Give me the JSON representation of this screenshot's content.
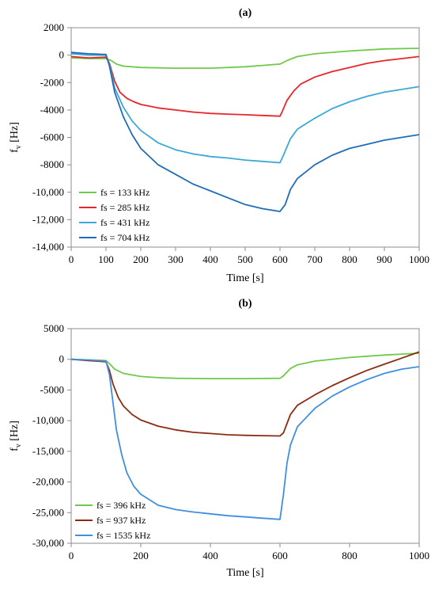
{
  "chart_data": [
    {
      "type": "line",
      "title": "(a)",
      "xlabel": "Time [s]",
      "ylabel": "f_v [Hz]",
      "ylabel_main": "f",
      "ylabel_sub": "v",
      "ylabel_unit": " [Hz]",
      "xlim": [
        0,
        1000
      ],
      "ylim": [
        -14000,
        2000
      ],
      "xticks": [
        0,
        100,
        200,
        300,
        400,
        500,
        600,
        700,
        800,
        900,
        1000
      ],
      "xtick_labels": [
        "0",
        "100",
        "200",
        "300",
        "400",
        "500",
        "600",
        "700",
        "800",
        "900",
        "1000"
      ],
      "yticks": [
        2000,
        0,
        -2000,
        -4000,
        -6000,
        -8000,
        -10000,
        -12000,
        -14000
      ],
      "ytick_labels": [
        "2000",
        "0",
        "-2000",
        "-4000",
        "-6000",
        "-8000",
        "-10,000",
        "-12,000",
        "-14,000"
      ],
      "grid": false,
      "legend_position": "bottom-left",
      "series": [
        {
          "name": "fs = 133 kHz",
          "color": "#70c94b",
          "x": [
            0,
            50,
            100,
            115,
            130,
            150,
            200,
            300,
            400,
            500,
            550,
            600,
            620,
            650,
            700,
            800,
            900,
            1000
          ],
          "y": [
            -200,
            -250,
            -250,
            -400,
            -650,
            -800,
            -900,
            -950,
            -950,
            -850,
            -750,
            -650,
            -400,
            -100,
            100,
            300,
            450,
            500
          ]
        },
        {
          "name": "fs = 285 kHz",
          "color": "#e8262a",
          "x": [
            0,
            50,
            100,
            110,
            125,
            140,
            160,
            180,
            200,
            250,
            300,
            350,
            400,
            450,
            500,
            550,
            600,
            605,
            620,
            640,
            660,
            700,
            750,
            800,
            850,
            900,
            950,
            1000
          ],
          "y": [
            -100,
            -200,
            -150,
            -600,
            -1900,
            -2700,
            -3150,
            -3400,
            -3600,
            -3850,
            -4000,
            -4150,
            -4250,
            -4300,
            -4350,
            -4400,
            -4450,
            -4200,
            -3300,
            -2600,
            -2100,
            -1600,
            -1200,
            -900,
            -600,
            -400,
            -250,
            -100
          ]
        },
        {
          "name": "fs = 431 kHz",
          "color": "#3aa8d8",
          "x": [
            0,
            50,
            100,
            110,
            125,
            150,
            175,
            200,
            250,
            300,
            350,
            400,
            450,
            500,
            550,
            600,
            610,
            630,
            650,
            700,
            750,
            800,
            850,
            900,
            950,
            1000
          ],
          "y": [
            100,
            0,
            0,
            -700,
            -2400,
            -3800,
            -4800,
            -5500,
            -6400,
            -6900,
            -7200,
            -7400,
            -7500,
            -7650,
            -7750,
            -7850,
            -7300,
            -6100,
            -5400,
            -4600,
            -3900,
            -3400,
            -3000,
            -2700,
            -2500,
            -2300
          ]
        },
        {
          "name": "fs = 704 kHz",
          "color": "#1f6db8",
          "x": [
            0,
            50,
            100,
            110,
            125,
            150,
            175,
            200,
            250,
            300,
            350,
            400,
            450,
            500,
            550,
            600,
            615,
            630,
            650,
            700,
            750,
            800,
            850,
            900,
            950,
            1000
          ],
          "y": [
            200,
            100,
            50,
            -800,
            -2700,
            -4500,
            -5800,
            -6800,
            -8000,
            -8700,
            -9400,
            -9900,
            -10400,
            -10900,
            -11200,
            -11400,
            -10900,
            -9800,
            -9000,
            -8000,
            -7300,
            -6800,
            -6500,
            -6200,
            -6000,
            -5800
          ]
        }
      ]
    },
    {
      "type": "line",
      "title": "(b)",
      "xlabel": "Time [s]",
      "ylabel": "f_v [Hz]",
      "ylabel_main": "f",
      "ylabel_sub": "v",
      "ylabel_unit": " [Hz]",
      "xlim": [
        0,
        1000
      ],
      "ylim": [
        -30000,
        5000
      ],
      "xticks": [
        0,
        200,
        400,
        600,
        800,
        1000
      ],
      "xtick_labels": [
        "0",
        "200",
        "400",
        "600",
        "800",
        "1000"
      ],
      "yticks": [
        5000,
        0,
        -5000,
        -10000,
        -15000,
        -20000,
        -25000,
        -30000
      ],
      "ytick_labels": [
        "5000",
        "0",
        "-5000",
        "-10,000",
        "-15,000",
        "-20,000",
        "-25,000",
        "-30,000"
      ],
      "grid": false,
      "legend_position": "bottom-left",
      "series": [
        {
          "name": "fs = 396 kHz",
          "color": "#70c94b",
          "x": [
            0,
            50,
            100,
            110,
            125,
            150,
            200,
            250,
            300,
            400,
            500,
            600,
            610,
            630,
            650,
            700,
            800,
            900,
            1000
          ],
          "y": [
            0,
            -100,
            -200,
            -700,
            -1600,
            -2300,
            -2800,
            -3000,
            -3100,
            -3150,
            -3150,
            -3100,
            -2700,
            -1500,
            -900,
            -300,
            300,
            700,
            1000
          ]
        },
        {
          "name": "fs = 937 kHz",
          "color": "#8b2c12",
          "x": [
            0,
            50,
            100,
            110,
            120,
            135,
            150,
            175,
            200,
            250,
            300,
            350,
            400,
            450,
            500,
            550,
            600,
            610,
            620,
            630,
            650,
            700,
            750,
            800,
            850,
            900,
            950,
            1000
          ],
          "y": [
            0,
            -200,
            -400,
            -1800,
            -4000,
            -6200,
            -7600,
            -9000,
            -9900,
            -10900,
            -11500,
            -11900,
            -12100,
            -12300,
            -12400,
            -12450,
            -12500,
            -12000,
            -10500,
            -9000,
            -7500,
            -5800,
            -4300,
            -3000,
            -1800,
            -800,
            200,
            1200
          ]
        },
        {
          "name": "fs = 1535 kHz",
          "color": "#3f8fe0",
          "x": [
            0,
            50,
            100,
            110,
            120,
            130,
            145,
            160,
            180,
            200,
            250,
            300,
            350,
            400,
            450,
            500,
            550,
            600,
            610,
            620,
            630,
            650,
            700,
            750,
            800,
            850,
            900,
            950,
            1000
          ],
          "y": [
            0,
            -100,
            -300,
            -2500,
            -7000,
            -11500,
            -15500,
            -18500,
            -20700,
            -22000,
            -23800,
            -24500,
            -24900,
            -25200,
            -25500,
            -25700,
            -25900,
            -26100,
            -22000,
            -17000,
            -14000,
            -11000,
            -8000,
            -6000,
            -4500,
            -3300,
            -2300,
            -1600,
            -1200
          ]
        }
      ]
    }
  ]
}
